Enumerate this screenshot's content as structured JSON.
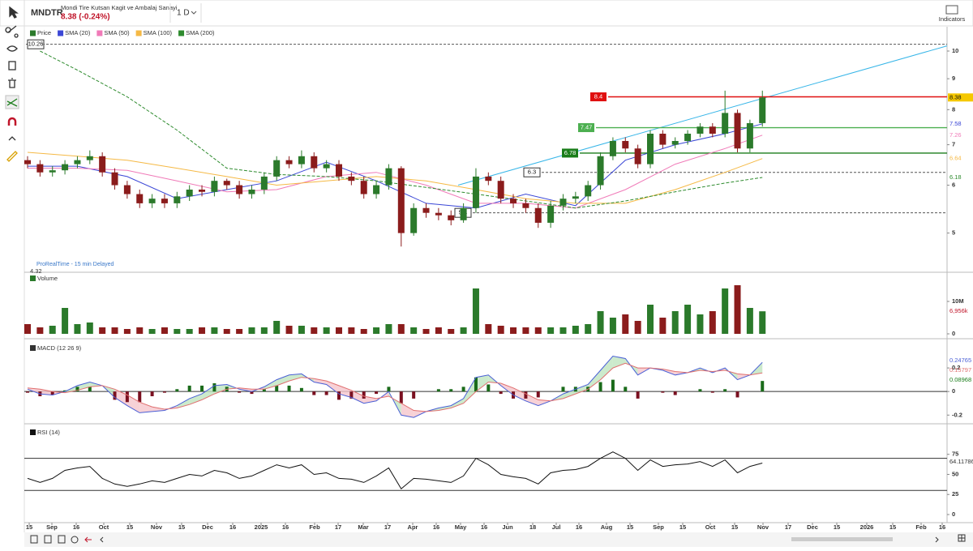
{
  "header": {
    "symbol": "MNDTR",
    "name": "Mondi Tire Kutsan Kagit ve Ambalaj Sanayi",
    "quote": "8.38 (-0.24%)",
    "timeframe": "1 D",
    "indicators": "Indicators"
  },
  "time_axis": {
    "labels": [
      "15",
      "Sep",
      "16",
      "Oct",
      "15",
      "Nov",
      "15",
      "Dec",
      "16",
      "2025",
      "16",
      "Feb",
      "17",
      "Mar",
      "17",
      "Apr",
      "16",
      "May",
      "16",
      "Jun",
      "18",
      "Jul",
      "16",
      "Aug",
      "15",
      "Sep",
      "15",
      "Oct",
      "15",
      "Nov",
      "17",
      "Dec",
      "15",
      "2026",
      "15",
      "Feb",
      "16"
    ]
  },
  "chart_data": [
    {
      "type": "candlestick",
      "name": "Price",
      "up_color": "#2b7a2b",
      "down_color": "#8b1c1c",
      "log_scale": true,
      "open": [
        6.6,
        6.5,
        6.3,
        6.35,
        6.5,
        6.6,
        6.7,
        6.3,
        6.0,
        5.8,
        5.6,
        5.7,
        5.6,
        5.75,
        5.9,
        5.85,
        6.1,
        6.0,
        5.8,
        5.9,
        6.2,
        6.6,
        6.5,
        6.7,
        6.4,
        6.5,
        6.2,
        6.1,
        5.8,
        6.0,
        6.4,
        5.0,
        5.5,
        5.4,
        5.35,
        5.25,
        5.5,
        6.2,
        6.1,
        5.7,
        5.6,
        5.5,
        5.2,
        5.55,
        5.7,
        5.75,
        6.0,
        6.7,
        7.1,
        6.9,
        6.5,
        7.3,
        7.0,
        7.1,
        7.3,
        7.5,
        7.3,
        7.9,
        6.9,
        7.6
      ],
      "high": [
        6.7,
        6.6,
        6.45,
        6.6,
        6.7,
        6.85,
        6.8,
        6.4,
        6.1,
        5.9,
        5.8,
        5.8,
        5.85,
        6.0,
        6.0,
        6.2,
        6.15,
        6.1,
        6.0,
        6.3,
        6.7,
        6.7,
        6.85,
        6.8,
        6.6,
        6.6,
        6.3,
        6.2,
        6.1,
        6.5,
        6.45,
        5.6,
        5.6,
        5.5,
        5.45,
        5.6,
        6.4,
        6.3,
        6.2,
        5.8,
        5.7,
        5.6,
        5.65,
        5.8,
        5.85,
        6.1,
        6.8,
        7.2,
        7.2,
        7.0,
        7.4,
        7.4,
        7.2,
        7.4,
        7.6,
        7.6,
        8.6,
        8.0,
        7.7,
        8.6
      ],
      "low": [
        6.4,
        6.2,
        6.2,
        6.25,
        6.4,
        6.5,
        6.2,
        5.9,
        5.7,
        5.5,
        5.5,
        5.5,
        5.5,
        5.65,
        5.75,
        5.75,
        5.9,
        5.7,
        5.7,
        5.8,
        6.1,
        6.4,
        6.4,
        6.3,
        6.3,
        6.1,
        6.0,
        5.7,
        5.7,
        5.9,
        4.75,
        4.95,
        5.3,
        5.25,
        5.15,
        5.2,
        5.4,
        6.0,
        5.6,
        5.5,
        5.4,
        5.1,
        5.1,
        5.45,
        5.6,
        5.65,
        5.9,
        6.6,
        6.8,
        6.4,
        6.4,
        6.9,
        6.9,
        7.0,
        7.2,
        7.2,
        7.2,
        6.8,
        6.8,
        7.5
      ],
      "close": [
        6.5,
        6.3,
        6.35,
        6.5,
        6.6,
        6.7,
        6.3,
        6.0,
        5.8,
        5.6,
        5.7,
        5.6,
        5.75,
        5.9,
        5.85,
        6.1,
        6.0,
        5.8,
        5.9,
        6.2,
        6.6,
        6.5,
        6.7,
        6.4,
        6.5,
        6.2,
        6.1,
        5.8,
        6.0,
        6.4,
        5.0,
        5.5,
        5.4,
        5.35,
        5.25,
        5.5,
        6.2,
        6.1,
        5.7,
        5.6,
        5.5,
        5.2,
        5.55,
        5.7,
        5.75,
        6.0,
        6.7,
        7.1,
        6.9,
        6.5,
        7.3,
        7.0,
        7.1,
        7.3,
        7.5,
        7.3,
        7.9,
        6.9,
        7.6,
        8.38
      ],
      "series": [
        {
          "name": "SMA (20)",
          "color": "#3b47d6",
          "x": [
            0,
            4,
            8,
            12,
            16,
            20,
            24,
            28,
            32,
            36,
            40,
            44,
            48,
            52,
            56,
            59
          ],
          "values": [
            6.45,
            6.45,
            6.2,
            5.7,
            5.9,
            6.1,
            6.55,
            6.1,
            5.6,
            5.5,
            5.8,
            5.55,
            6.6,
            7.0,
            7.3,
            7.58
          ]
        },
        {
          "name": "SMA (50)",
          "color": "#f07ab8",
          "x": [
            0,
            4,
            8,
            12,
            16,
            20,
            24,
            28,
            32,
            36,
            40,
            44,
            48,
            52,
            56,
            59
          ],
          "values": [
            6.4,
            6.4,
            6.35,
            6.1,
            5.85,
            5.9,
            6.2,
            6.3,
            6.0,
            5.6,
            5.6,
            5.5,
            5.9,
            6.5,
            6.9,
            7.26
          ]
        },
        {
          "name": "SMA (100)",
          "color": "#f5b945",
          "x": [
            0,
            4,
            8,
            12,
            16,
            20,
            24,
            28,
            32,
            36,
            40,
            44,
            48,
            52,
            56,
            59
          ],
          "values": [
            6.8,
            6.7,
            6.6,
            6.4,
            6.2,
            6.0,
            6.1,
            6.2,
            6.1,
            5.9,
            5.7,
            5.6,
            5.6,
            5.9,
            6.3,
            6.64
          ]
        },
        {
          "name": "SMA (200)",
          "color": "#2e8b2e",
          "dashed": true,
          "x": [
            1,
            4,
            8,
            12,
            16,
            20,
            24,
            28,
            32,
            36,
            40,
            44,
            48,
            52,
            56,
            59
          ],
          "values": [
            10.0,
            9.3,
            8.4,
            7.4,
            6.4,
            6.25,
            6.2,
            6.1,
            5.95,
            5.8,
            5.65,
            5.5,
            5.65,
            5.85,
            6.05,
            6.18
          ]
        }
      ],
      "ylim": [
        4.32,
        10.97
      ],
      "yticks": [
        5,
        6,
        7,
        8,
        9,
        10
      ],
      "bottom_label": 4.32,
      "levels": [
        {
          "value": 10.26,
          "color": "#555555",
          "dashed": true
        },
        {
          "value": 8.4,
          "color": "#e01010",
          "dashed": false
        },
        {
          "value": 7.47,
          "color": "#4caf50",
          "dashed": false
        },
        {
          "value": 6.78,
          "color": "#1a7d1a",
          "dashed": false
        },
        {
          "value": 6.3,
          "color": "#555555",
          "dashed": true
        },
        {
          "value": 5.4,
          "color": "#555555",
          "dashed": true
        }
      ],
      "trendline": [
        6.0,
        10.2
      ],
      "trend_color": "#38b6e8",
      "footnote": "ProRealTime - 15 min Delayed"
    },
    {
      "type": "bar",
      "title": "Volume",
      "values": [
        3,
        2,
        2.5,
        8,
        3,
        3.5,
        2,
        2,
        1.5,
        2,
        1.5,
        2,
        1.5,
        1.5,
        2,
        2,
        1.5,
        1.5,
        2,
        2,
        4,
        2.5,
        2.5,
        2,
        2,
        2,
        2,
        1.5,
        2,
        3,
        3,
        2,
        1.5,
        2,
        1.5,
        2,
        14,
        3,
        2.5,
        2,
        2,
        2,
        2,
        2,
        2.5,
        3,
        7,
        5,
        6,
        4,
        9,
        5,
        7,
        9,
        6,
        7,
        14,
        15,
        8,
        6.956
      ],
      "last_label": "6,956k",
      "ylim": [
        0,
        18.5
      ],
      "yticks": [
        0,
        {
          "value": 10,
          "label": "10M"
        }
      ]
    },
    {
      "type": "macd",
      "title": "MACD (12 26 9)",
      "series": [
        {
          "color": "#4a5fd6",
          "values": [
            0.02,
            -0.02,
            -0.03,
            0.0,
            0.05,
            0.08,
            0.05,
            -0.05,
            -0.12,
            -0.18,
            -0.17,
            -0.16,
            -0.12,
            -0.06,
            -0.02,
            0.05,
            0.06,
            0.02,
            0.0,
            0.04,
            0.1,
            0.14,
            0.15,
            0.08,
            0.06,
            -0.02,
            -0.05,
            -0.1,
            -0.08,
            0.0,
            -0.2,
            -0.22,
            -0.17,
            -0.14,
            -0.12,
            -0.06,
            0.12,
            0.14,
            0.05,
            -0.03,
            -0.08,
            -0.12,
            -0.08,
            -0.02,
            0.02,
            0.06,
            0.18,
            0.3,
            0.28,
            0.14,
            0.2,
            0.18,
            0.14,
            0.16,
            0.2,
            0.16,
            0.2,
            0.1,
            0.14,
            0.24765
          ]
        },
        {
          "color": "#e07070",
          "values": [
            0.03,
            0.02,
            0.0,
            -0.01,
            0.01,
            0.04,
            0.05,
            0.02,
            -0.03,
            -0.09,
            -0.13,
            -0.15,
            -0.14,
            -0.11,
            -0.07,
            -0.02,
            0.02,
            0.03,
            0.02,
            0.02,
            0.05,
            0.09,
            0.12,
            0.11,
            0.09,
            0.05,
            0.01,
            -0.04,
            -0.06,
            -0.04,
            -0.1,
            -0.16,
            -0.17,
            -0.16,
            -0.14,
            -0.1,
            0.0,
            0.08,
            0.07,
            0.03,
            -0.02,
            -0.07,
            -0.08,
            -0.06,
            -0.02,
            0.02,
            0.1,
            0.2,
            0.24,
            0.2,
            0.2,
            0.19,
            0.17,
            0.16,
            0.18,
            0.17,
            0.18,
            0.15,
            0.14,
            0.15797
          ]
        }
      ],
      "histogram": [
        -0.01,
        -0.04,
        -0.03,
        0.01,
        0.04,
        0.04,
        0.0,
        -0.07,
        -0.09,
        -0.09,
        -0.04,
        -0.01,
        0.02,
        0.05,
        0.05,
        0.07,
        0.04,
        -0.01,
        -0.02,
        0.02,
        0.05,
        0.05,
        0.03,
        -0.03,
        -0.03,
        -0.07,
        -0.06,
        -0.06,
        -0.02,
        0.04,
        -0.1,
        -0.06,
        0.0,
        0.02,
        0.02,
        0.04,
        0.12,
        0.06,
        -0.02,
        -0.06,
        -0.06,
        -0.05,
        0.0,
        0.04,
        0.04,
        0.04,
        0.08,
        0.1,
        0.04,
        -0.06,
        0.0,
        -0.01,
        -0.03,
        0.0,
        0.02,
        -0.01,
        0.02,
        -0.05,
        0.0,
        0.08968
      ],
      "ylim": [
        -0.26,
        0.4
      ],
      "yticks": [
        -0.2,
        0,
        0.2
      ]
    },
    {
      "type": "line",
      "title": "RSI (14)",
      "color": "#111111",
      "values": [
        45,
        40,
        45,
        55,
        58,
        60,
        45,
        38,
        35,
        38,
        42,
        40,
        45,
        50,
        48,
        55,
        52,
        45,
        48,
        55,
        62,
        58,
        62,
        50,
        52,
        45,
        44,
        40,
        48,
        58,
        32,
        45,
        44,
        42,
        40,
        48,
        70,
        62,
        50,
        47,
        45,
        38,
        52,
        55,
        56,
        60,
        70,
        78,
        70,
        55,
        68,
        60,
        62,
        63,
        66,
        60,
        68,
        52,
        60,
        64.11786
      ],
      "bands": [
        30,
        70
      ],
      "ylim": [
        0,
        109
      ],
      "yticks": [
        0,
        25,
        50,
        75
      ]
    }
  ]
}
